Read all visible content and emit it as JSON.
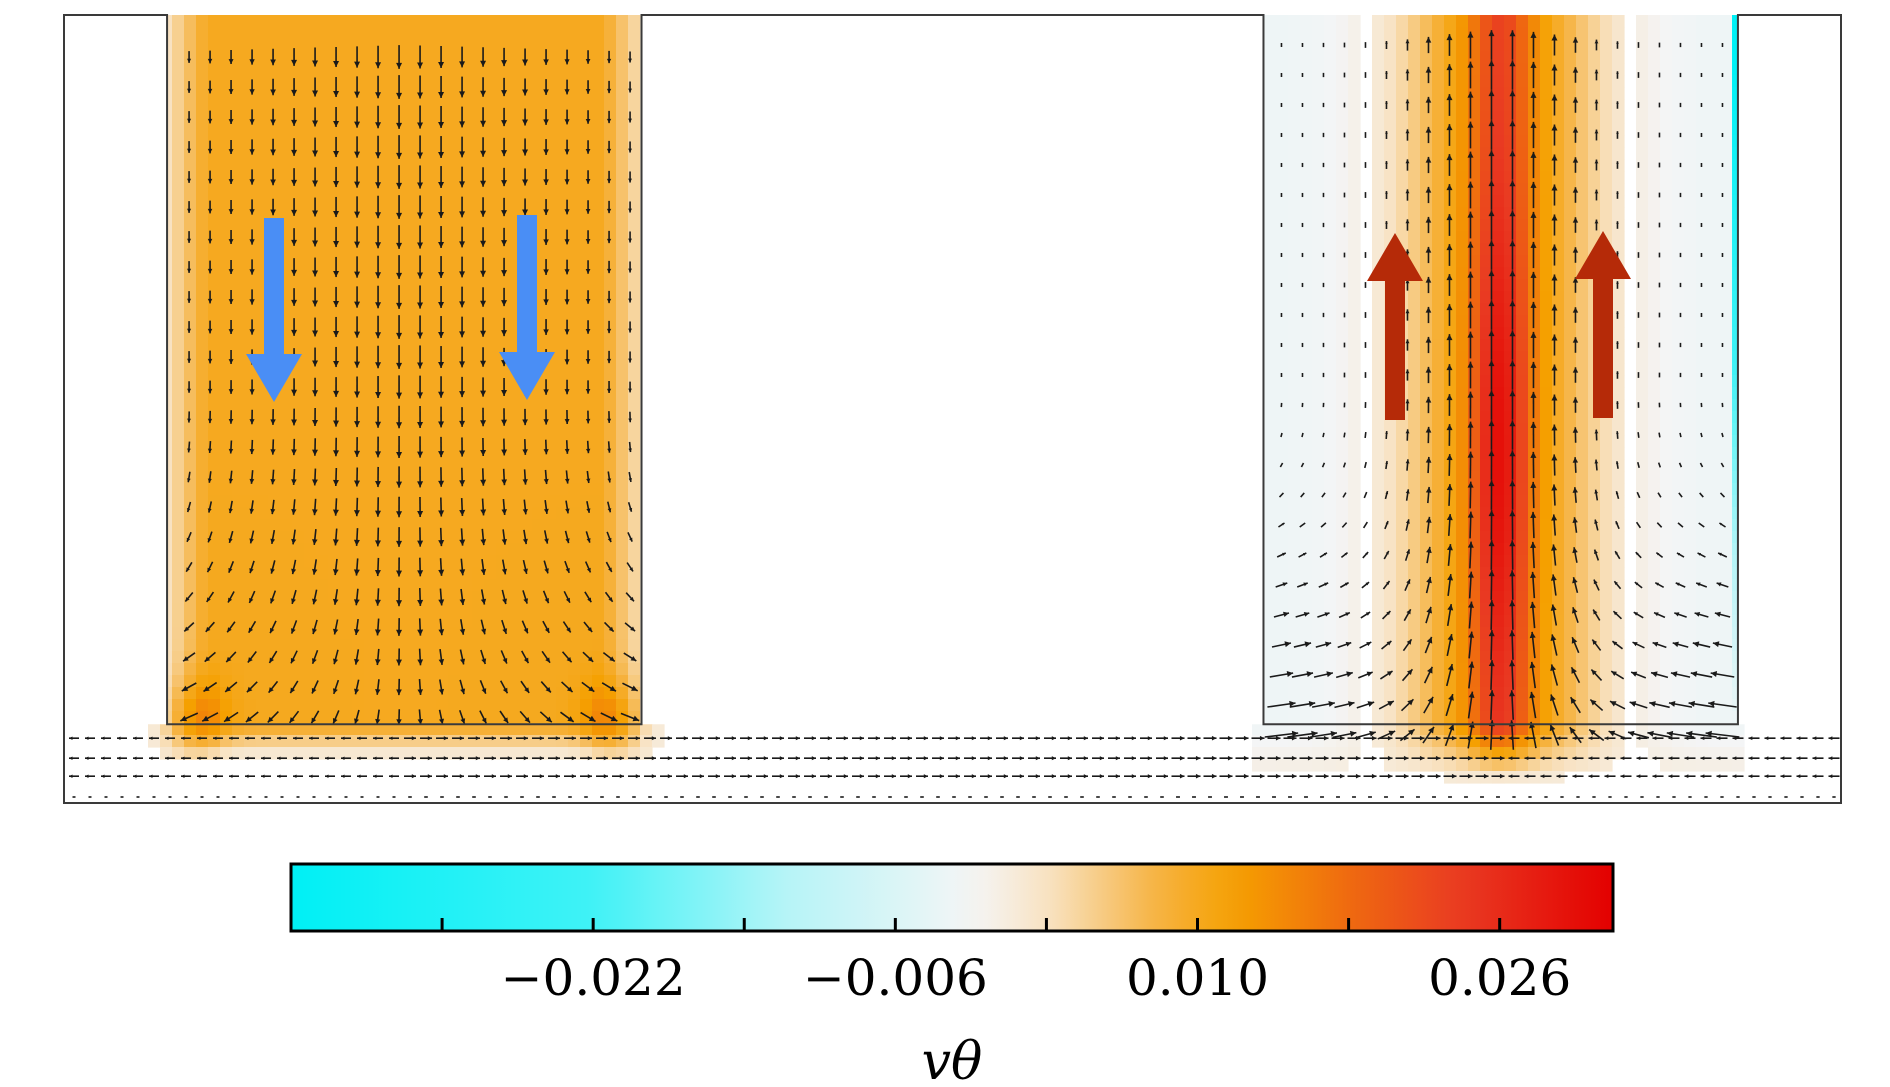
{
  "chart_data": {
    "type": "heatmap",
    "title": "",
    "description_free": true,
    "colorbar": {
      "label": "vθ",
      "range": [
        -0.038,
        0.032
      ],
      "tick_values": [
        -0.03,
        -0.022,
        -0.014,
        -0.006,
        0.002,
        0.01,
        0.018,
        0.026
      ],
      "tick_labels": [
        {
          "value": -0.022,
          "text": "−0.022"
        },
        {
          "value": -0.006,
          "text": "−0.006"
        },
        {
          "value": 0.01,
          "text": "0.010"
        },
        {
          "value": 0.026,
          "text": "0.026"
        }
      ],
      "colormap": [
        {
          "value": -0.038,
          "color": "#00f0f5"
        },
        {
          "value": -0.022,
          "color": "#40f2f6"
        },
        {
          "value": -0.012,
          "color": "#b4f4f7"
        },
        {
          "value": -0.002,
          "color": "#f4f5f6"
        },
        {
          "value": 0.002,
          "color": "#f8e3c4"
        },
        {
          "value": 0.008,
          "color": "#f6b23f"
        },
        {
          "value": 0.012,
          "color": "#f5a000"
        },
        {
          "value": 0.018,
          "color": "#ef6a10"
        },
        {
          "value": 0.024,
          "color": "#e93a22"
        },
        {
          "value": 0.032,
          "color": "#e30000"
        }
      ]
    },
    "domain": {
      "x_range": [
        0,
        1
      ],
      "y_range": [
        0,
        1
      ],
      "left_column": [
        0.058,
        0.325
      ],
      "right_column": [
        0.675,
        0.942
      ],
      "channel_top": 0.1
    },
    "field": {
      "left_column_value": 0.01,
      "left_corner_value": 0.014,
      "right_column_edge_value": -0.003,
      "right_plume_peak_value": 0.03
    },
    "flow_markers": [
      {
        "column": "left",
        "direction": "down",
        "color": "#4a8ef5"
      },
      {
        "column": "left",
        "direction": "down",
        "color": "#4a8ef5"
      },
      {
        "column": "right",
        "direction": "up",
        "color": "#b52a08"
      },
      {
        "column": "right",
        "direction": "up",
        "color": "#b52a08"
      }
    ]
  }
}
